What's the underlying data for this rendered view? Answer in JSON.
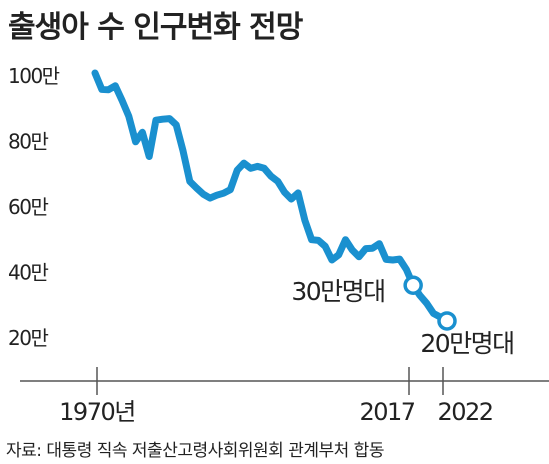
{
  "title": "출생아 수 인구변화 전망",
  "source": "자료: 대통령 직속 저출산고령사회위원회 관계부처 합동",
  "colors": {
    "line": "#1a90cf",
    "axis": "#555555",
    "text": "#222222"
  },
  "chart_data": {
    "type": "line",
    "title": "출생아 수 인구변화 전망",
    "xlabel": "",
    "ylabel": "",
    "xlim": [
      1970,
      2022
    ],
    "ylim": [
      10,
      105
    ],
    "y_ticks": [
      {
        "value": 100,
        "label": "100만"
      },
      {
        "value": 80,
        "label": "80만"
      },
      {
        "value": 60,
        "label": "60만"
      },
      {
        "value": 40,
        "label": "40만"
      },
      {
        "value": 20,
        "label": "20만"
      }
    ],
    "x_ticks": [
      {
        "value": 1970,
        "label": "1970년"
      },
      {
        "value": 2017,
        "label": "2017"
      },
      {
        "value": 2022,
        "label": "2022"
      }
    ],
    "series": [
      {
        "x": [
          1970,
          1971,
          1972,
          1973,
          1974,
          1975,
          1976,
          1977,
          1978,
          1979,
          1980,
          1981,
          1982,
          1983,
          1984,
          1985,
          1986,
          1987,
          1988,
          1989,
          1990,
          1991,
          1992,
          1993,
          1994,
          1995,
          1996,
          1997,
          1998,
          1999,
          2000,
          2001,
          2002,
          2003,
          2004,
          2005,
          2006,
          2007,
          2008,
          2009,
          2010,
          2011,
          2012,
          2013,
          2014,
          2015,
          2016,
          2017,
          2018,
          2019,
          2020,
          2021,
          2022
        ],
        "values": [
          100.6,
          95.6,
          95.5,
          96.7,
          92.2,
          87.4,
          79.6,
          82.5,
          75.1,
          86.2,
          86.5,
          86.7,
          84.8,
          76.9,
          67.5,
          65.5,
          63.6,
          62.4,
          63.3,
          63.9,
          65.0,
          70.9,
          73.1,
          71.5,
          72.1,
          71.5,
          69.1,
          67.5,
          64.2,
          62.1,
          64.0,
          55.7,
          49.7,
          49.5,
          47.7,
          43.5,
          45.1,
          49.7,
          46.6,
          44.5,
          47.0,
          47.1,
          48.5,
          43.7,
          43.5,
          43.8,
          40.6,
          35.8,
          32.7,
          30.3,
          27.2,
          26.1,
          24.9
        ]
      }
    ],
    "annotations": [
      {
        "x": 2017,
        "value": 35.8,
        "label": "30만명대"
      },
      {
        "x": 2022,
        "value": 24.9,
        "label": "20만명대"
      }
    ]
  }
}
